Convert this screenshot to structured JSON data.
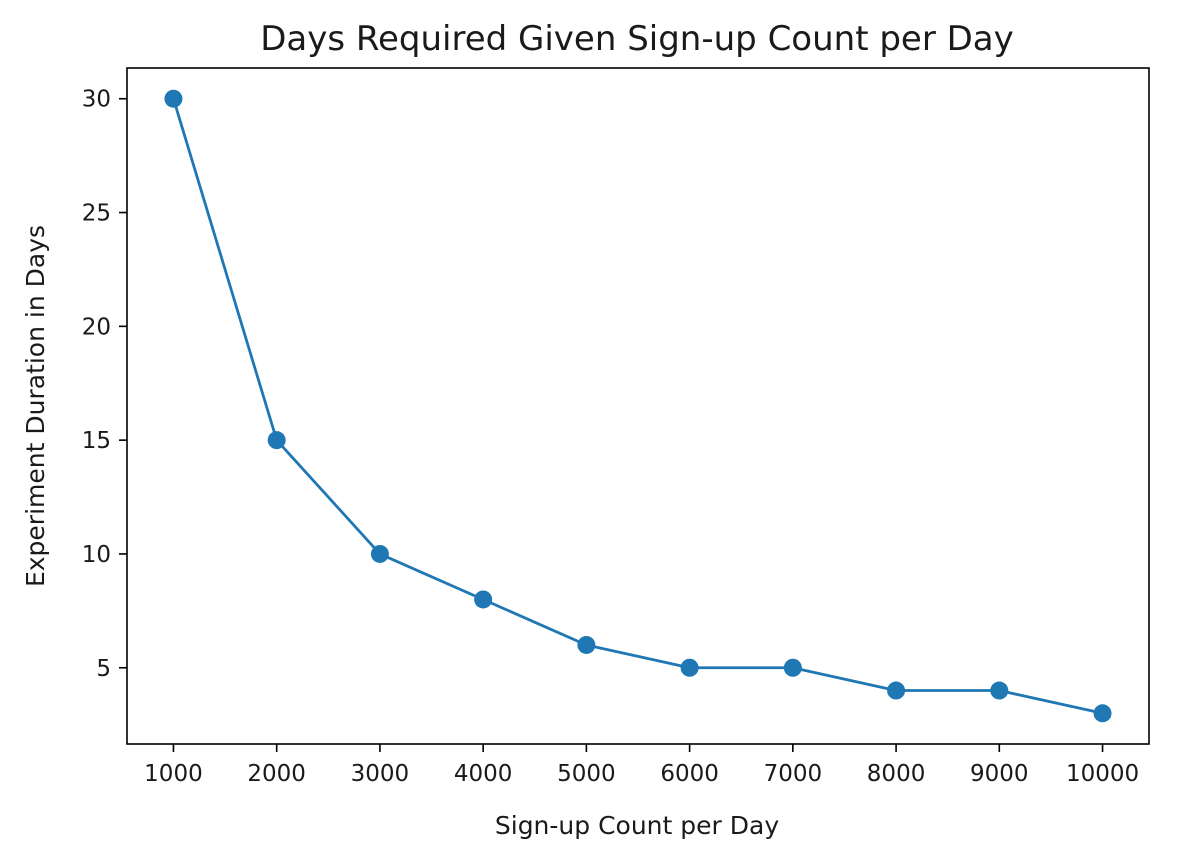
{
  "chart_data": {
    "type": "line",
    "title": "Days Required Given Sign-up Count per Day",
    "xlabel": "Sign-up Count per Day",
    "ylabel": "Experiment Duration in Days",
    "x": [
      1000,
      2000,
      3000,
      4000,
      5000,
      6000,
      7000,
      8000,
      9000,
      10000
    ],
    "series": [
      {
        "values": [
          30,
          15,
          10,
          8,
          6,
          5,
          5,
          4,
          4,
          3
        ],
        "color": "#1f77b4",
        "marker": "circle"
      }
    ],
    "xticks": [
      1000,
      2000,
      3000,
      4000,
      5000,
      6000,
      7000,
      8000,
      9000,
      10000
    ],
    "yticks": [
      5,
      10,
      15,
      20,
      25,
      30
    ],
    "xlim": [
      550,
      10450
    ],
    "ylim": [
      1.65,
      31.35
    ],
    "grid": false,
    "legend": "none"
  }
}
